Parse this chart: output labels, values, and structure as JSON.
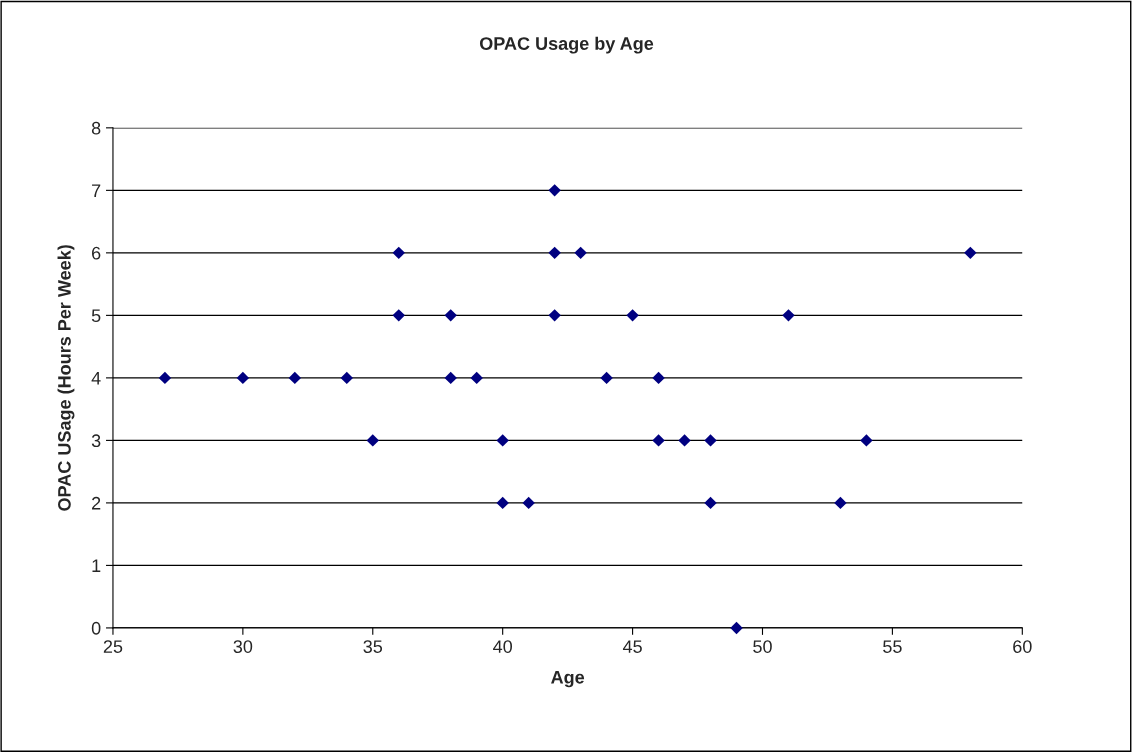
{
  "chart_data": {
    "type": "scatter",
    "title": "OPAC Usage by Age",
    "xlabel": "Age",
    "ylabel": "OPAC USage (Hours Per Week)",
    "series": [
      {
        "color": "#000080",
        "x": [
          27,
          30,
          32,
          34,
          35,
          36,
          36,
          38,
          38,
          39,
          40,
          40,
          41,
          42,
          42,
          42,
          43,
          44,
          45,
          46,
          46,
          47,
          48,
          48,
          49,
          51,
          53,
          54,
          58
        ],
        "values": [
          4,
          4,
          4,
          4,
          3,
          6,
          5,
          5,
          4,
          4,
          3,
          2,
          2,
          7,
          6,
          5,
          6,
          4,
          5,
          4,
          3,
          3,
          3,
          2,
          0,
          5,
          2,
          3,
          6
        ]
      }
    ],
    "xlim": [
      25,
      60
    ],
    "xticks": [
      25,
      30,
      35,
      40,
      45,
      50,
      55,
      60
    ],
    "ylim": [
      0,
      8
    ],
    "yticks": [
      0,
      1,
      2,
      3,
      4,
      5,
      6,
      7,
      8
    ],
    "grid": "y",
    "marker": "diamond",
    "legend": false
  }
}
